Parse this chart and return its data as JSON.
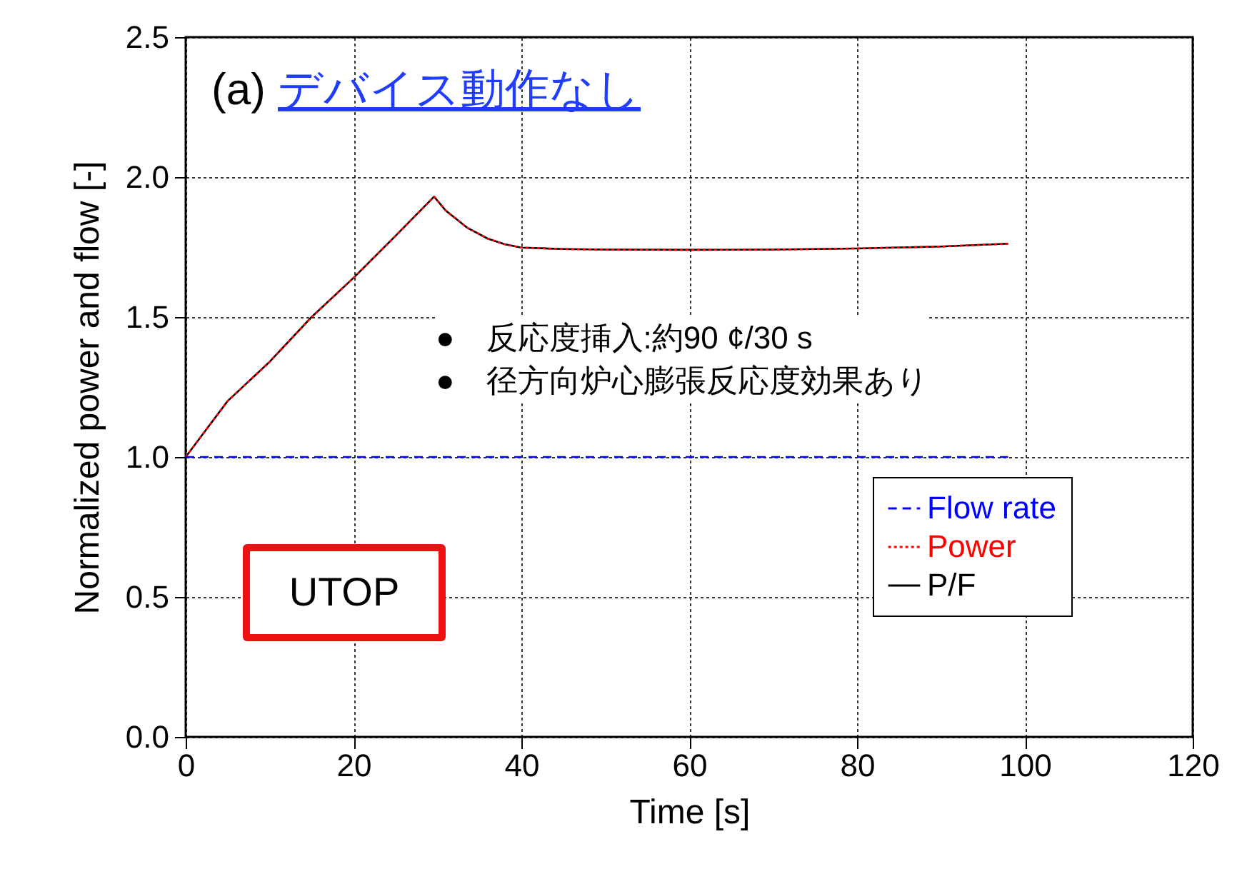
{
  "chart_data": {
    "type": "line",
    "title": "(a) デバイス動作なし",
    "xlabel": "Time [s]",
    "ylabel": "Normalized power and flow [-]",
    "series": [
      {
        "name": "Flow rate",
        "color": "#0000ff",
        "line_style": "dashed",
        "x": [
          0,
          98
        ],
        "values": [
          1.0,
          1.0
        ]
      },
      {
        "name": "Power",
        "color": "#ff0000",
        "line_style": "dotted",
        "x": [
          0,
          2.5,
          5,
          10,
          15,
          20,
          25,
          29.6,
          31,
          33.5,
          36,
          38,
          40,
          45,
          50,
          60,
          70,
          80,
          90,
          98
        ],
        "values": [
          1.0,
          1.1,
          1.2,
          1.34,
          1.5,
          1.64,
          1.79,
          1.93,
          1.88,
          1.82,
          1.78,
          1.76,
          1.748,
          1.743,
          1.741,
          1.74,
          1.741,
          1.745,
          1.752,
          1.762
        ]
      },
      {
        "name": "P/F",
        "color": "#000000",
        "line_style": "solid",
        "x": [
          0,
          2.5,
          5,
          10,
          15,
          20,
          25,
          29.6,
          31,
          33.5,
          36,
          38,
          40,
          45,
          50,
          60,
          70,
          80,
          90,
          98
        ],
        "values": [
          1.0,
          1.1,
          1.2,
          1.34,
          1.5,
          1.64,
          1.79,
          1.93,
          1.88,
          1.82,
          1.78,
          1.76,
          1.748,
          1.743,
          1.741,
          1.74,
          1.741,
          1.745,
          1.752,
          1.762
        ]
      }
    ],
    "xlim": [
      0,
      120
    ],
    "xticks": [
      0,
      20,
      40,
      60,
      80,
      100,
      120
    ],
    "ylim": [
      0,
      2.5
    ],
    "yticks": [
      {
        "value": 0,
        "label": "0.0"
      },
      {
        "value": 0.5,
        "label": "0.5"
      },
      {
        "value": 1,
        "label": "1.0"
      },
      {
        "value": 1.5,
        "label": "1.5"
      },
      {
        "value": 2,
        "label": "2.0"
      },
      {
        "value": 2.5,
        "label": "2.5"
      }
    ],
    "grid": true,
    "legend": "bottom right",
    "annotations": [
      "●　反応度挿入:約90 ¢/30 s",
      "●　径方向炉心膨張反応度効果あり",
      "UTOP"
    ]
  }
}
